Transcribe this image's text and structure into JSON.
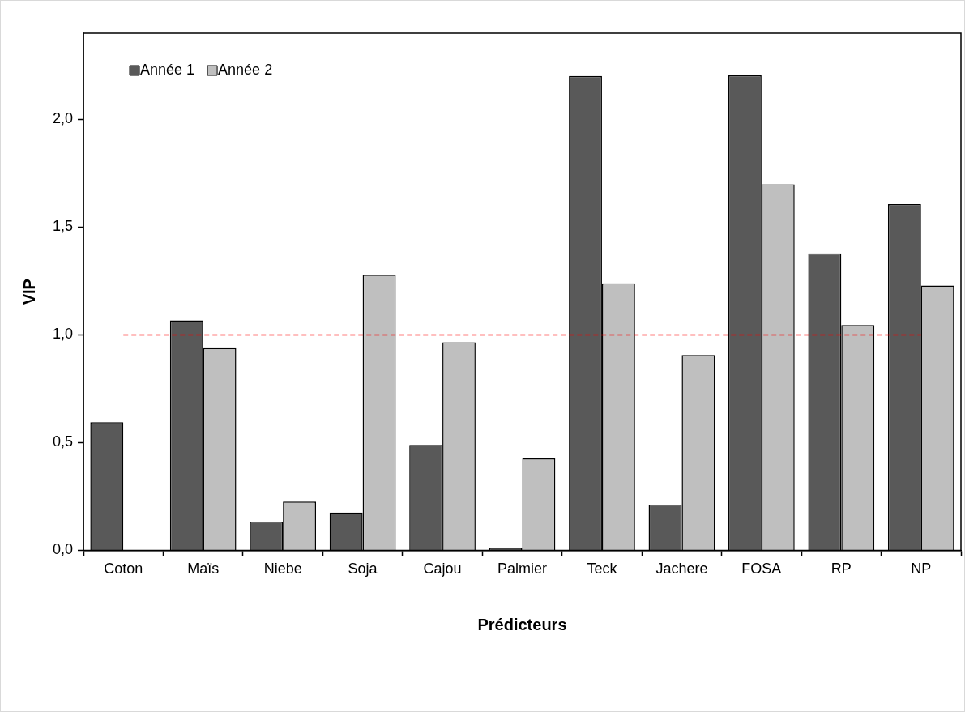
{
  "chart_data": {
    "type": "bar",
    "xlabel": "Prédicteurs",
    "ylabel": "VIP",
    "categories": [
      "Coton",
      "Maïs",
      "Niebe",
      "Soja",
      "Cajou",
      "Palmier",
      "Teck",
      "Jachere",
      "FOSA",
      "RP",
      "NP"
    ],
    "series": [
      {
        "name": "Année 1",
        "color": "#595959",
        "values": [
          0.595,
          1.067,
          0.133,
          0.175,
          0.489,
          0.011,
          2.202,
          0.212,
          2.205,
          1.378,
          1.607
        ]
      },
      {
        "name": "Année 2",
        "color": "#bfbfbf",
        "values": [
          0,
          0.939,
          0.226,
          1.279,
          0.966,
          0.426,
          1.239,
          0.907,
          1.699,
          1.046,
          1.229
        ]
      }
    ],
    "ylim": [
      0,
      2.4
    ],
    "yticks": [
      {
        "value": 0,
        "label": "0,0"
      },
      {
        "value": 0.5,
        "label": "0,5"
      },
      {
        "value": 1,
        "label": "1,0"
      },
      {
        "value": 1.5,
        "label": "1,5"
      },
      {
        "value": 2,
        "label": "2,0"
      }
    ],
    "ref_lines": [
      {
        "axis": "y",
        "value": 1,
        "color": "#ff0000",
        "line_style": "dashed"
      }
    ],
    "grid": false,
    "legend": "top left"
  }
}
